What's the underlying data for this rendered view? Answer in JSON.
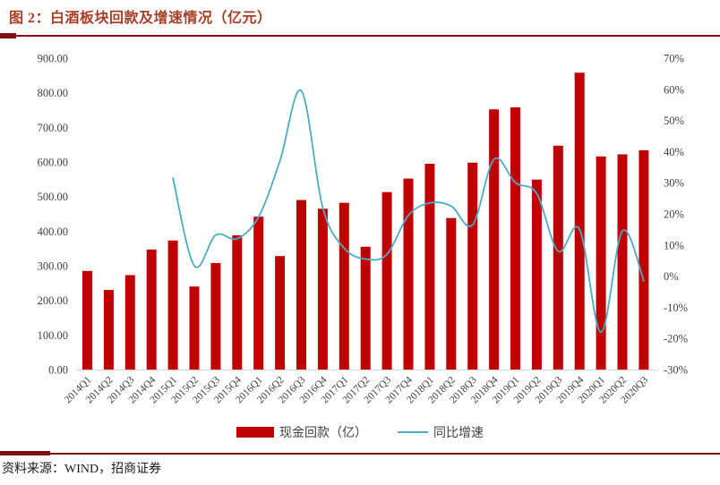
{
  "figure": {
    "title": "图 2：白酒板块回款及增速情况（亿元）",
    "source": "资料来源：WIND，招商证券"
  },
  "colors": {
    "bar": "#C00000",
    "line": "#4BACC6",
    "title": "#A93E28",
    "rule": "#7F1010",
    "axis_text": "#404040",
    "axis_line": "#D9D9D9"
  },
  "chart_data": {
    "type": "bar",
    "subtype": "bar+line combo, dual axis",
    "title": "图 2：白酒板块回款及增速情况（亿元）",
    "xlabel": "",
    "ylabel_left": "现金回款（亿）",
    "ylabel_right": "同比增速",
    "grid": false,
    "legend_position": "bottom",
    "categories": [
      "2014Q1",
      "2014Q2",
      "2014Q3",
      "2014Q4",
      "2015Q1",
      "2015Q2",
      "2015Q3",
      "2015Q4",
      "2016Q1",
      "2016Q2",
      "2016Q3",
      "2016Q4",
      "2017Q1",
      "2017Q2",
      "2017Q3",
      "2017Q4",
      "2018Q1",
      "2018Q2",
      "2018Q3",
      "2018Q4",
      "2019Q1",
      "2019Q2",
      "2019Q3",
      "2019Q4",
      "2020Q1",
      "2020Q2",
      "2020Q3"
    ],
    "series": [
      {
        "name": "现金回款（亿）",
        "type": "bar",
        "axis": "left",
        "values": [
          285,
          230,
          273,
          347,
          373,
          240,
          308,
          388,
          442,
          328,
          490,
          465,
          482,
          355,
          513,
          552,
          595,
          438,
          598,
          752,
          758,
          549,
          647,
          858,
          616,
          622,
          634
        ]
      },
      {
        "name": "同比增速",
        "type": "line",
        "axis": "right",
        "unit": "percent",
        "values": [
          null,
          null,
          null,
          null,
          31.5,
          3.3,
          13.2,
          12,
          19,
          37,
          59.5,
          22,
          9,
          5.5,
          7,
          19.5,
          23.5,
          22.5,
          16.5,
          37.5,
          30,
          26.5,
          8,
          15,
          -18,
          14.5,
          -1.5
        ]
      }
    ],
    "left_axis": {
      "min": 0,
      "max": 900,
      "step": 100,
      "ticks": [
        "0.00",
        "100.00",
        "200.00",
        "300.00",
        "400.00",
        "500.00",
        "600.00",
        "700.00",
        "800.00",
        "900.00"
      ]
    },
    "right_axis": {
      "min": -30,
      "max": 70,
      "step": 10,
      "ticks": [
        "-30%",
        "-20%",
        "-10%",
        "0%",
        "10%",
        "20%",
        "30%",
        "40%",
        "50%",
        "60%",
        "70%"
      ]
    }
  }
}
